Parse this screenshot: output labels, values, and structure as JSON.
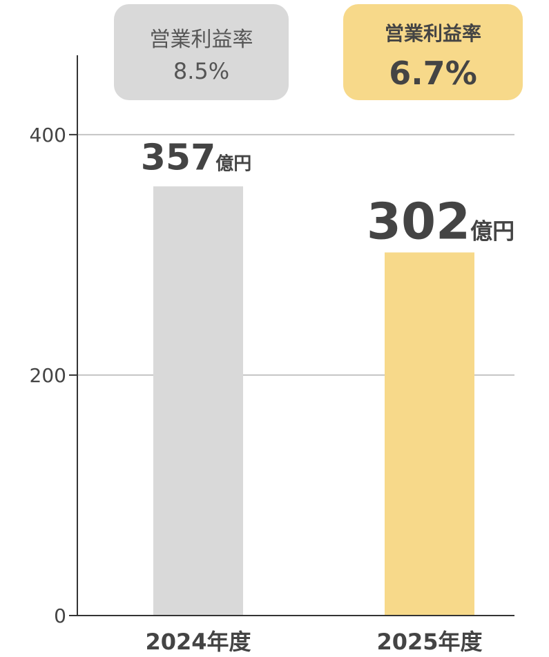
{
  "chart_data": {
    "type": "bar",
    "categories": [
      "2024年度",
      "2025年度"
    ],
    "values": [
      357,
      302
    ],
    "value_unit": "億円",
    "colors": [
      "#d9d9d9",
      "#f7d98a"
    ],
    "ylim": [
      0,
      466
    ],
    "yticks": [
      0,
      200,
      400
    ],
    "grid": true,
    "annotations": [
      {
        "label": "営業利益率",
        "value": "8.5%"
      },
      {
        "label": "営業利益率",
        "value": "6.7%"
      }
    ]
  }
}
